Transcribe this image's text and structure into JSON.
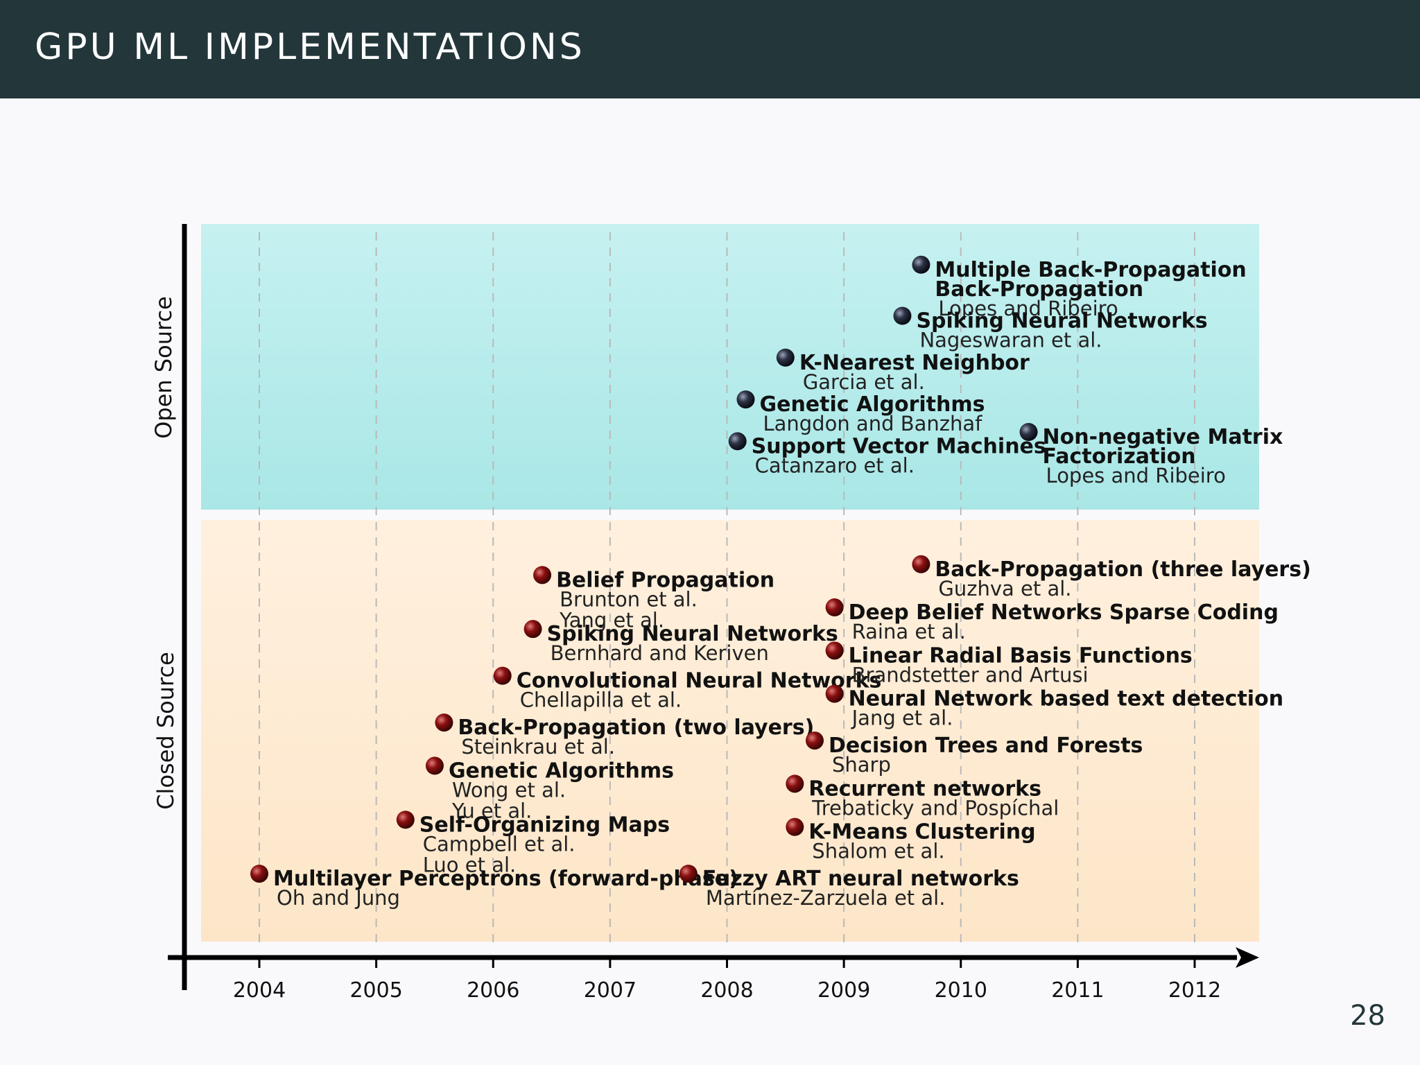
{
  "header": {
    "title": "GPU ML IMPLEMENTATIONS"
  },
  "page_number": "28",
  "colors": {
    "header_bg": "#23373b",
    "open_band": "#b2ebea",
    "closed_band": "#fde9cf",
    "open_dot": "#1a1f2e",
    "closed_dot": "#7a0d0d"
  },
  "chart_data": {
    "type": "scatter",
    "title": "",
    "xlabel": "",
    "ylabel": "",
    "x_ticks": [
      "2004",
      "2005",
      "2006",
      "2007",
      "2008",
      "2009",
      "2010",
      "2011",
      "2012"
    ],
    "xlim": [
      2003.5,
      2012.55
    ],
    "categories": [
      {
        "key": "open",
        "label": "Open Source"
      },
      {
        "key": "closed",
        "label": "Closed Source"
      }
    ],
    "points": [
      {
        "category": "open",
        "x": 2009.66,
        "level": 0.08,
        "title_lines": [
          "Multiple Back-Propagation",
          "Back-Propagation"
        ],
        "authors": [
          "Lopes and Ribeiro"
        ]
      },
      {
        "category": "open",
        "x": 2009.5,
        "level": 0.3,
        "title_lines": [
          "Spiking Neural Networks"
        ],
        "authors": [
          "Nageswaran et al."
        ]
      },
      {
        "category": "open",
        "x": 2008.5,
        "level": 0.48,
        "title_lines": [
          "K-Nearest Neighbor"
        ],
        "authors": [
          "Garcia et al."
        ]
      },
      {
        "category": "open",
        "x": 2008.16,
        "level": 0.66,
        "title_lines": [
          "Genetic Algorithms"
        ],
        "authors": [
          "Langdon and Banzhaf"
        ]
      },
      {
        "category": "open",
        "x": 2008.09,
        "level": 0.84,
        "title_lines": [
          "Support Vector Machines"
        ],
        "authors": [
          "Catanzaro et al."
        ]
      },
      {
        "category": "open",
        "x": 2010.58,
        "level": 0.8,
        "title_lines": [
          "Non-negative Matrix",
          "Factorization"
        ],
        "authors": [
          "Lopes and Ribeiro"
        ]
      },
      {
        "category": "closed",
        "x": 2006.42,
        "level": 0.07,
        "title_lines": [
          "Belief Propagation"
        ],
        "authors": [
          "Brunton et al.",
          "Yang et al."
        ]
      },
      {
        "category": "closed",
        "x": 2006.34,
        "level": 0.22,
        "title_lines": [
          "Spiking Neural Networks"
        ],
        "authors": [
          "Bernhard and Keriven"
        ]
      },
      {
        "category": "closed",
        "x": 2006.08,
        "level": 0.35,
        "title_lines": [
          "Convolutional Neural Networks"
        ],
        "authors": [
          "Chellapilla et al."
        ]
      },
      {
        "category": "closed",
        "x": 2005.58,
        "level": 0.48,
        "title_lines": [
          "Back-Propagation (two layers)"
        ],
        "authors": [
          "Steinkrau et al."
        ]
      },
      {
        "category": "closed",
        "x": 2005.5,
        "level": 0.6,
        "title_lines": [
          "Genetic Algorithms"
        ],
        "authors": [
          "Wong et al.",
          "Yu et al."
        ]
      },
      {
        "category": "closed",
        "x": 2005.25,
        "level": 0.75,
        "title_lines": [
          "Self-Organizing Maps"
        ],
        "authors": [
          "Campbell et al.",
          "Luo et al."
        ]
      },
      {
        "category": "closed",
        "x": 2004.0,
        "level": 0.9,
        "title_lines": [
          "Multilayer Perceptrons (forward-phase)"
        ],
        "authors": [
          "Oh and Jung"
        ]
      },
      {
        "category": "closed",
        "x": 2007.67,
        "level": 0.9,
        "title_lines": [
          "Fuzzy ART neural networks"
        ],
        "authors": [
          "Martínez-Zarzuela et al."
        ]
      },
      {
        "category": "closed",
        "x": 2009.66,
        "level": 0.04,
        "title_lines": [
          "Back-Propagation (three layers)"
        ],
        "authors": [
          "Guzhva et al."
        ]
      },
      {
        "category": "closed",
        "x": 2008.92,
        "level": 0.16,
        "title_lines": [
          "Deep Belief Networks Sparse Coding"
        ],
        "authors": [
          "Raina et al."
        ]
      },
      {
        "category": "closed",
        "x": 2008.92,
        "level": 0.28,
        "title_lines": [
          "Linear Radial Basis Functions"
        ],
        "authors": [
          "Brandstetter and Artusi"
        ]
      },
      {
        "category": "closed",
        "x": 2008.92,
        "level": 0.4,
        "title_lines": [
          "Neural Network based text detection"
        ],
        "authors": [
          "Jang et al."
        ]
      },
      {
        "category": "closed",
        "x": 2008.75,
        "level": 0.53,
        "title_lines": [
          "Decision Trees and Forests"
        ],
        "authors": [
          "Sharp"
        ]
      },
      {
        "category": "closed",
        "x": 2008.58,
        "level": 0.65,
        "title_lines": [
          "Recurrent networks"
        ],
        "authors": [
          "Trebaticky and Pospíchal"
        ]
      },
      {
        "category": "closed",
        "x": 2008.58,
        "level": 0.77,
        "title_lines": [
          "K-Means Clustering"
        ],
        "authors": [
          "Shalom et al."
        ]
      }
    ]
  }
}
